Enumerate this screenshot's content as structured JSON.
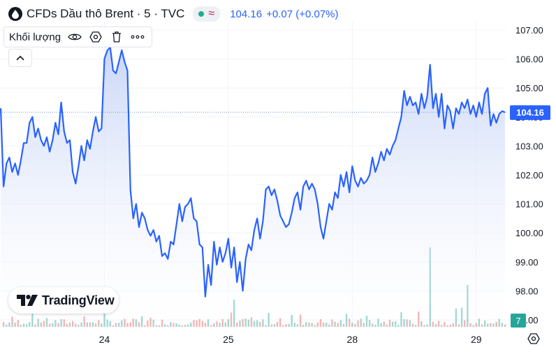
{
  "header": {
    "symbol_title": "CFDs Dầu thô Brent · 5 · TVC",
    "price": "104.16",
    "change": "+0.07 (+0.07%)",
    "status_color": "#22ab94"
  },
  "volume_panel": {
    "label": "Khối lượng",
    "icons": [
      "eye-icon",
      "settings-hexagon-icon",
      "trash-icon",
      "more-icon"
    ]
  },
  "collapse_icon": "chevron-up-icon",
  "logo_text": "TradingView",
  "colors": {
    "line": "#2962ff",
    "area_top": "#c7d4f7",
    "area_bottom": "#ffffff",
    "price_tag_bg": "#2962ff",
    "volume_up": "#26a69a",
    "volume_down": "#ef5350",
    "grid": "#f0f3fa",
    "axis_text": "#131722"
  },
  "chart_data": {
    "type": "area",
    "y_axis": {
      "ticks": [
        "107.00",
        "106.00",
        "105.00",
        "104.00",
        "103.00",
        "102.00",
        "101.00",
        "100.00",
        "99.00",
        "98.00",
        "97.00"
      ],
      "range": [
        96.95,
        107.4
      ],
      "position": "right"
    },
    "x_axis": {
      "ticks": [
        "24",
        "25",
        "28",
        "29"
      ]
    },
    "last_price_label": "104.16",
    "volume_scale_label": "7",
    "grid": true,
    "series": [
      {
        "values": [
          [
            0,
            104.3
          ],
          [
            1,
            101.6
          ],
          [
            2,
            102.4
          ],
          [
            3,
            102.6
          ],
          [
            4,
            102.1
          ],
          [
            5,
            102.4
          ],
          [
            6,
            102.0
          ],
          [
            7,
            102.5
          ],
          [
            8,
            103.1
          ],
          [
            9,
            103.1
          ],
          [
            10,
            103.8
          ],
          [
            11,
            104.0
          ],
          [
            12,
            103.3
          ],
          [
            13,
            103.6
          ],
          [
            14,
            103.2
          ],
          [
            15,
            103.0
          ],
          [
            16,
            103.3
          ],
          [
            17,
            102.8
          ],
          [
            18,
            103.2
          ],
          [
            19,
            103.8
          ],
          [
            20,
            103.4
          ],
          [
            21,
            104.5
          ],
          [
            22,
            103.5
          ],
          [
            23,
            103.1
          ],
          [
            24,
            103.2
          ],
          [
            25,
            102.1
          ],
          [
            26,
            101.7
          ],
          [
            27,
            102.3
          ],
          [
            28,
            103.0
          ],
          [
            29,
            102.5
          ],
          [
            30,
            103.2
          ],
          [
            31,
            102.9
          ],
          [
            32,
            103.5
          ],
          [
            33,
            104.0
          ],
          [
            34,
            103.5
          ],
          [
            35,
            103.6
          ],
          [
            36,
            106.0
          ],
          [
            37,
            106.3
          ],
          [
            38,
            106.4
          ],
          [
            39,
            105.6
          ],
          [
            40,
            105.5
          ],
          [
            41,
            105.9
          ],
          [
            42,
            106.3
          ],
          [
            43,
            105.9
          ],
          [
            44,
            105.6
          ],
          [
            45,
            101.5
          ],
          [
            46,
            100.5
          ],
          [
            47,
            101.0
          ],
          [
            48,
            100.2
          ],
          [
            49,
            100.7
          ],
          [
            50,
            100.5
          ],
          [
            51,
            100.1
          ],
          [
            52,
            99.9
          ],
          [
            53,
            100.1
          ],
          [
            54,
            99.7
          ],
          [
            55,
            99.9
          ],
          [
            56,
            99.2
          ],
          [
            57,
            99.3
          ],
          [
            58,
            99.1
          ],
          [
            59,
            99.7
          ],
          [
            60,
            99.6
          ],
          [
            61,
            100.3
          ],
          [
            62,
            101.0
          ],
          [
            63,
            100.4
          ],
          [
            64,
            100.9
          ],
          [
            65,
            101.0
          ],
          [
            66,
            101.2
          ],
          [
            67,
            100.5
          ],
          [
            68,
            100.4
          ],
          [
            69,
            99.6
          ],
          [
            70,
            99.5
          ],
          [
            71,
            97.8
          ],
          [
            72,
            98.9
          ],
          [
            73,
            98.2
          ],
          [
            74,
            99.7
          ],
          [
            75,
            98.9
          ],
          [
            76,
            99.5
          ],
          [
            77,
            99.0
          ],
          [
            78,
            99.3
          ],
          [
            79,
            99.8
          ],
          [
            80,
            98.8
          ],
          [
            81,
            99.5
          ],
          [
            82,
            98.3
          ],
          [
            83,
            99.0
          ],
          [
            84,
            98.0
          ],
          [
            85,
            99.1
          ],
          [
            86,
            99.6
          ],
          [
            87,
            99.4
          ],
          [
            88,
            100.1
          ],
          [
            89,
            100.5
          ],
          [
            90,
            99.8
          ],
          [
            91,
            100.4
          ],
          [
            92,
            101.5
          ],
          [
            93,
            101.6
          ],
          [
            94,
            101.3
          ],
          [
            95,
            101.5
          ],
          [
            96,
            101.1
          ],
          [
            97,
            100.6
          ],
          [
            98,
            100.4
          ],
          [
            99,
            100.2
          ],
          [
            100,
            100.3
          ],
          [
            101,
            100.7
          ],
          [
            102,
            101.2
          ],
          [
            103,
            101.4
          ],
          [
            104,
            100.8
          ],
          [
            105,
            101.6
          ],
          [
            106,
            101.8
          ],
          [
            107,
            101.5
          ],
          [
            108,
            101.7
          ],
          [
            109,
            101.5
          ],
          [
            110,
            101.0
          ],
          [
            111,
            100.2
          ],
          [
            112,
            99.8
          ],
          [
            113,
            100.4
          ],
          [
            114,
            101.0
          ],
          [
            115,
            100.8
          ],
          [
            116,
            101.4
          ],
          [
            117,
            101.2
          ],
          [
            118,
            102.0
          ],
          [
            119,
            101.6
          ],
          [
            120,
            102.1
          ],
          [
            121,
            101.4
          ],
          [
            122,
            102.3
          ],
          [
            123,
            101.8
          ],
          [
            124,
            101.6
          ],
          [
            125,
            101.9
          ],
          [
            126,
            101.7
          ],
          [
            127,
            101.8
          ],
          [
            128,
            102.0
          ],
          [
            129,
            102.6
          ],
          [
            130,
            102.1
          ],
          [
            131,
            102.4
          ],
          [
            132,
            102.8
          ],
          [
            133,
            102.5
          ],
          [
            134,
            102.9
          ],
          [
            135,
            102.7
          ],
          [
            136,
            103.0
          ],
          [
            137,
            103.2
          ],
          [
            138,
            103.6
          ],
          [
            139,
            104.0
          ],
          [
            140,
            104.9
          ],
          [
            141,
            104.4
          ],
          [
            142,
            104.7
          ],
          [
            143,
            104.4
          ],
          [
            144,
            104.5
          ],
          [
            145,
            104.1
          ],
          [
            146,
            104.8
          ],
          [
            147,
            104.3
          ],
          [
            148,
            104.7
          ],
          [
            149,
            105.8
          ],
          [
            150,
            104.3
          ],
          [
            151,
            104.8
          ],
          [
            152,
            104.0
          ],
          [
            153,
            104.8
          ],
          [
            154,
            103.6
          ],
          [
            155,
            104.4
          ],
          [
            156,
            104.2
          ],
          [
            157,
            103.6
          ],
          [
            158,
            104.3
          ],
          [
            159,
            104.1
          ],
          [
            160,
            104.5
          ],
          [
            161,
            104.3
          ],
          [
            162,
            104.6
          ],
          [
            163,
            104.1
          ],
          [
            164,
            104.4
          ],
          [
            165,
            104.0
          ],
          [
            166,
            104.5
          ],
          [
            167,
            104.1
          ],
          [
            168,
            104.8
          ],
          [
            169,
            105.0
          ],
          [
            170,
            103.7
          ],
          [
            171,
            104.1
          ],
          [
            172,
            103.8
          ],
          [
            173,
            104.1
          ],
          [
            174,
            104.2
          ],
          [
            175,
            104.16
          ]
        ]
      }
    ],
    "x_tick_positions": [
      36,
      79,
      122,
      165
    ],
    "volume_spikes": [
      [
        36,
        1.6
      ],
      [
        81,
        1.3
      ],
      [
        149,
        3.8
      ],
      [
        162,
        2.0
      ]
    ]
  }
}
